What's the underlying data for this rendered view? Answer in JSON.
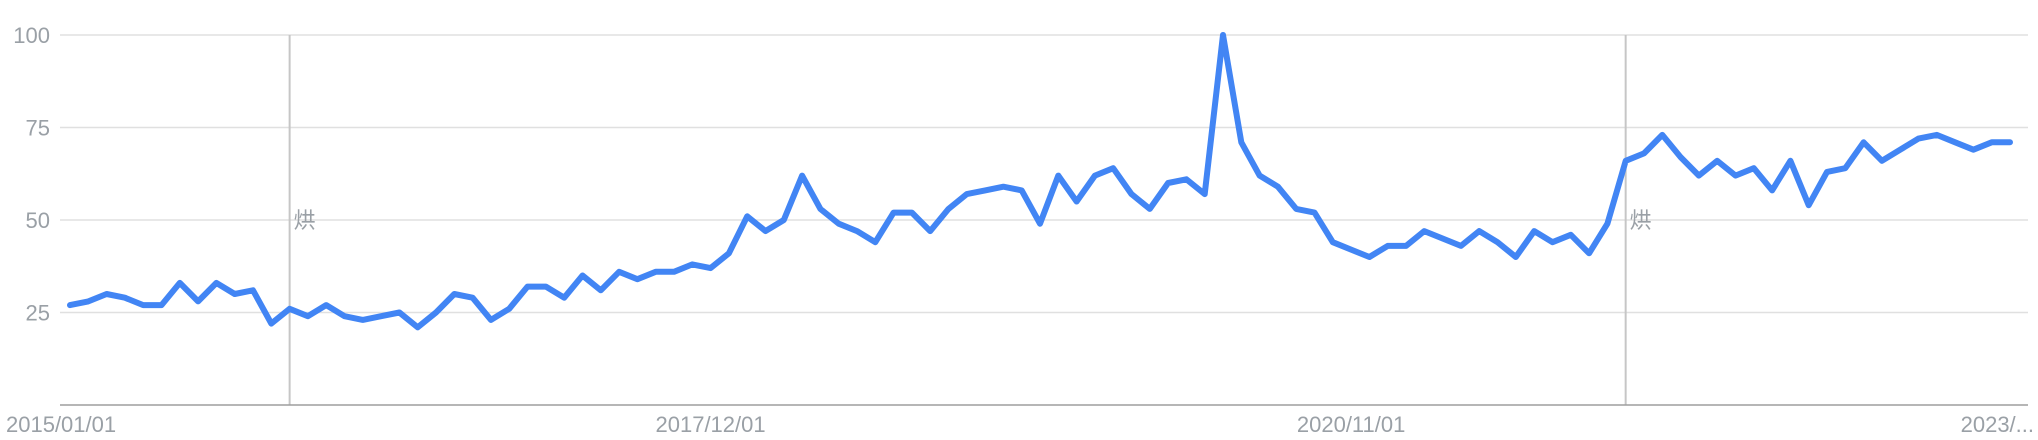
{
  "chart_data": {
    "type": "line",
    "title": "",
    "xlabel": "",
    "ylabel": "",
    "ylim": [
      0,
      100
    ],
    "y_ticks": [
      25,
      50,
      75,
      100
    ],
    "grid": true,
    "legend": "none",
    "colors": {
      "line": "#4285f4",
      "grid": "#e0e0e0",
      "axis": "#9e9e9e",
      "text": "#9aa0a6",
      "marker": "#c6c6c6"
    },
    "x_tick_labels": [
      {
        "label": "2015/01/01",
        "index": 0
      },
      {
        "label": "2017/12/01",
        "index": 35
      },
      {
        "label": "2020/11/01",
        "index": 70
      },
      {
        "label": "2023/...",
        "index": 107
      }
    ],
    "annotations": [
      {
        "index": 12,
        "label": "烘"
      },
      {
        "index": 85,
        "label": "烘"
      }
    ],
    "series": [
      {
        "values": [
          27,
          28,
          30,
          29,
          27,
          27,
          33,
          28,
          33,
          30,
          31,
          22,
          26,
          24,
          27,
          24,
          23,
          24,
          25,
          21,
          25,
          30,
          29,
          23,
          26,
          32,
          32,
          29,
          35,
          31,
          36,
          34,
          36,
          36,
          38,
          37,
          41,
          51,
          47,
          50,
          62,
          53,
          49,
          47,
          44,
          52,
          52,
          47,
          53,
          57,
          58,
          59,
          58,
          49,
          62,
          55,
          62,
          64,
          57,
          53,
          60,
          61,
          57,
          100,
          71,
          62,
          59,
          53,
          52,
          44,
          42,
          40,
          43,
          43,
          47,
          45,
          43,
          47,
          44,
          40,
          47,
          44,
          46,
          41,
          49,
          66,
          68,
          73,
          67,
          62,
          66,
          62,
          64,
          58,
          66,
          54,
          63,
          64,
          71,
          66,
          69,
          72,
          73,
          71,
          69,
          71,
          71
        ]
      }
    ]
  }
}
